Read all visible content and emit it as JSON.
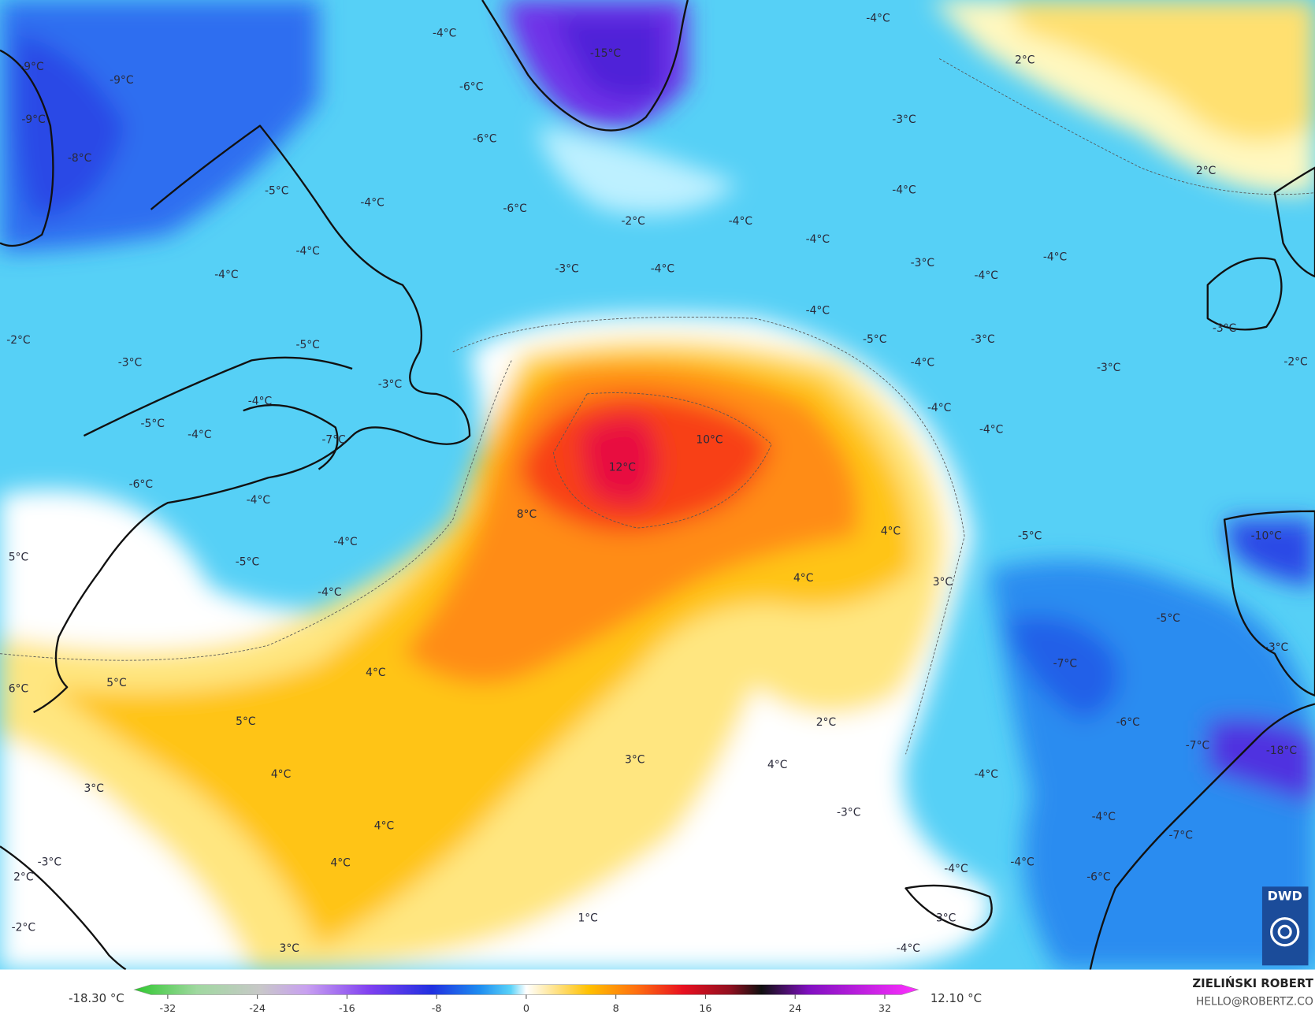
{
  "map": {
    "labels": [
      "-4°C",
      "-15°C",
      "-4°C",
      "2°C",
      "-9°C",
      "-9°C",
      "-6°C",
      "-3°C",
      "-9°C",
      "-8°C",
      "-6°C",
      "2°C",
      "-5°C",
      "-4°C",
      "-4°C",
      "-6°C",
      "-2°C",
      "-4°C",
      "-4°C",
      "-4°C",
      "-3°C",
      "-4°C",
      "-3°C",
      "-4°C",
      "-4°C",
      "-4°C",
      "-4°C",
      "-2°C",
      "-5°C",
      "-5°C",
      "-3°C",
      "-3°C",
      "-3°C",
      "-4°C",
      "-3°C",
      "-2°C",
      "-3°C",
      "-4°C",
      "-4°C",
      "-5°C",
      "-4°C",
      "-7°C",
      "10°C",
      "-4°C",
      "12°C",
      "-6°C",
      "8°C",
      "-4°C",
      "4°C",
      "-5°C",
      "-10°C",
      "-4°C",
      "5°C",
      "-5°C",
      "4°C",
      "3°C",
      "-4°C",
      "-5°C",
      "-7°C",
      "-3°C",
      "4°C",
      "6°C",
      "5°C",
      "5°C",
      "-6°C",
      "2°C",
      "-7°C",
      "-18°C",
      "3°C",
      "4°C",
      "-4°C",
      "4°C",
      "3°C",
      "-3°C",
      "-4°C",
      "4°C",
      "-3°C",
      "4°C",
      "-4°C",
      "-4°C",
      "-7°C",
      "-6°C",
      "2°C",
      "1°C",
      "3°C",
      "-2°C",
      "3°C",
      "-4°C"
    ]
  },
  "colorbar": {
    "min_label": "-18.30 °C",
    "max_label": "12.10 °C",
    "range": [
      -32,
      32
    ],
    "ticks": [
      -32,
      -24,
      -16,
      -8,
      0,
      8,
      16,
      24,
      32
    ]
  },
  "branding": {
    "author": "ZIELIŃSKI ROBERT",
    "contact": "HELLO@ROBERTZ.CO",
    "logo": "DWD"
  }
}
